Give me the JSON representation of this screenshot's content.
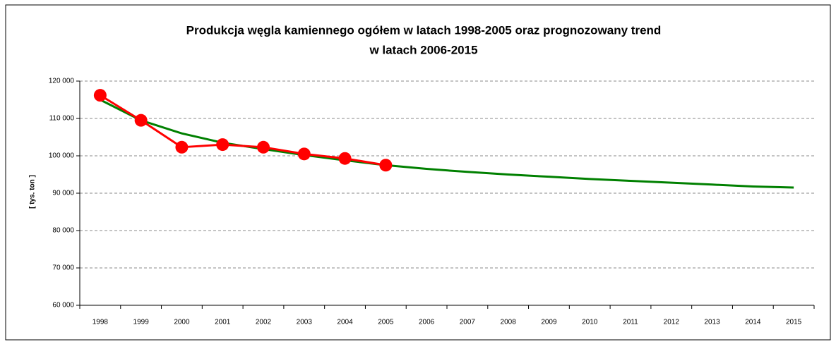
{
  "chart_data": {
    "type": "line",
    "title": [
      "Produkcja węgla kamiennego ogółem w latach 1998-2005 oraz prognozowany trend",
      "w latach 2006-2015"
    ],
    "y_label": "[ tys. ton ]",
    "categories": [
      "1998",
      "1999",
      "2000",
      "2001",
      "2002",
      "2003",
      "2004",
      "2005",
      "2006",
      "2007",
      "2008",
      "2009",
      "2010",
      "2011",
      "2012",
      "2013",
      "2014",
      "2015"
    ],
    "series": [
      {
        "color": "#ff0000",
        "markers": true,
        "values": [
          116200,
          109500,
          102300,
          103000,
          102300,
          100500,
          99300,
          97500,
          null,
          null,
          null,
          null,
          null,
          null,
          null,
          null,
          null,
          null
        ]
      },
      {
        "color": "#008000",
        "markers": false,
        "values": [
          115000,
          109500,
          106000,
          103500,
          101800,
          100200,
          98800,
          97500,
          96500,
          95700,
          95000,
          94400,
          93800,
          93300,
          92800,
          92300,
          91800,
          91500
        ]
      }
    ],
    "ylim": [
      60000,
      120000
    ],
    "yticks": [
      {
        "value": 60000,
        "label": "60 000"
      },
      {
        "value": 70000,
        "label": "70 000"
      },
      {
        "value": 80000,
        "label": "80 000"
      },
      {
        "value": 90000,
        "label": "90 000"
      },
      {
        "value": 100000,
        "label": "100 000"
      },
      {
        "value": 110000,
        "label": "110 000"
      },
      {
        "value": 120000,
        "label": "120 000"
      }
    ],
    "grid": true
  }
}
